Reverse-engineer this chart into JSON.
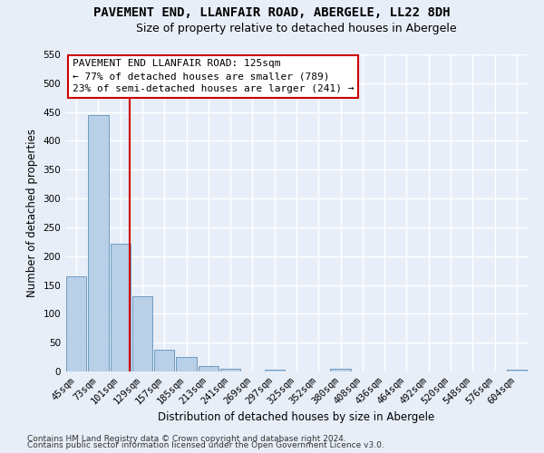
{
  "title": "PAVEMENT END, LLANFAIR ROAD, ABERGELE, LL22 8DH",
  "subtitle": "Size of property relative to detached houses in Abergele",
  "xlabel": "Distribution of detached houses by size in Abergele",
  "ylabel": "Number of detached properties",
  "categories": [
    "45sqm",
    "73sqm",
    "101sqm",
    "129sqm",
    "157sqm",
    "185sqm",
    "213sqm",
    "241sqm",
    "269sqm",
    "297sqm",
    "325sqm",
    "352sqm",
    "380sqm",
    "408sqm",
    "436sqm",
    "464sqm",
    "492sqm",
    "520sqm",
    "548sqm",
    "576sqm",
    "604sqm"
  ],
  "values": [
    165,
    445,
    222,
    130,
    38,
    25,
    9,
    5,
    0,
    3,
    0,
    0,
    4,
    0,
    0,
    0,
    0,
    0,
    0,
    0,
    3
  ],
  "bar_color": "#b8d0e8",
  "bar_edge_color": "#6090b8",
  "vline_color": "#cc0000",
  "annotation_text": "PAVEMENT END LLANFAIR ROAD: 125sqm\n← 77% of detached houses are smaller (789)\n23% of semi-detached houses are larger (241) →",
  "annotation_box_color": "#ffffff",
  "annotation_box_edge_color": "#cc0000",
  "ylim": [
    0,
    550
  ],
  "yticks": [
    0,
    50,
    100,
    150,
    200,
    250,
    300,
    350,
    400,
    450,
    500,
    550
  ],
  "footer_line1": "Contains HM Land Registry data © Crown copyright and database right 2024.",
  "footer_line2": "Contains public sector information licensed under the Open Government Licence v3.0.",
  "background_color": "#e8eef8",
  "grid_color": "#ffffff",
  "title_fontsize": 10,
  "subtitle_fontsize": 9,
  "tick_fontsize": 7.5,
  "ylabel_fontsize": 8.5,
  "xlabel_fontsize": 8.5,
  "annotation_fontsize": 8,
  "footer_fontsize": 6.5
}
